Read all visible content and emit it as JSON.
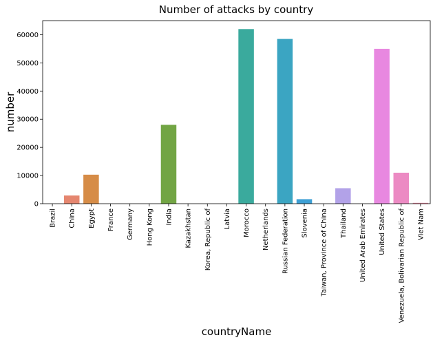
{
  "chart_data": {
    "type": "bar",
    "title": "Number of attacks by country",
    "xlabel": "countryName",
    "ylabel": "number",
    "ylim": [
      0,
      65000
    ],
    "yticks": [
      0,
      10000,
      20000,
      30000,
      40000,
      50000,
      60000
    ],
    "grid": false,
    "legend": "none",
    "categories": [
      "Brazil",
      "China",
      "Egypt",
      "France",
      "Germany",
      "Hong Kong",
      "India",
      "Kazakhstan",
      "Korea, Republic of",
      "Latvia",
      "Morocco",
      "Netherlands",
      "Russian Federation",
      "Slovenia",
      "Taiwan, Province of China",
      "Thailand",
      "United Arab Emirates",
      "United States",
      "Venezuela, Bolivarian Republic of",
      "Viet Nam"
    ],
    "values": [
      0,
      2900,
      10300,
      0,
      0,
      0,
      28000,
      0,
      0,
      0,
      62000,
      0,
      58500,
      1600,
      0,
      5500,
      0,
      55000,
      11000,
      300
    ],
    "colors": [
      "#e8806d",
      "#e5866f",
      "#d68c47",
      "#c39f3c",
      "#b0a23d",
      "#98a63c",
      "#72a544",
      "#3fb25a",
      "#3eb077",
      "#3eae91",
      "#3aaa9d",
      "#3aaaad",
      "#3ba5c2",
      "#3d9fd4",
      "#7fa3e4",
      "#b2a2e8",
      "#d49be9",
      "#e888e0",
      "#ec8ac3",
      "#f28ca4"
    ]
  }
}
